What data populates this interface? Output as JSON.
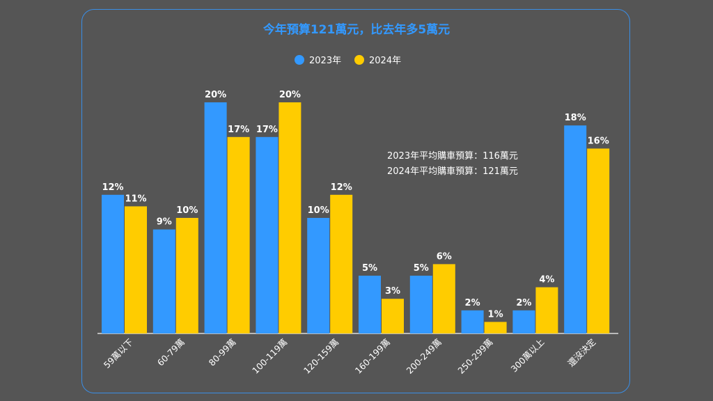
{
  "chart_data": {
    "type": "bar",
    "title": "今年預算121萬元，比去年多5萬元",
    "categories": [
      "59萬以下",
      "60-79萬",
      "80-99萬",
      "100-119萬",
      "120-159萬",
      "160-199萬",
      "200-249萬",
      "250-299萬",
      "300萬以上",
      "還沒決定"
    ],
    "series": [
      {
        "name": "2023年",
        "color": "#3399ff",
        "values": [
          12,
          9,
          20,
          17,
          10,
          5,
          5,
          2,
          2,
          18
        ]
      },
      {
        "name": "2024年",
        "color": "#ffcc00",
        "values": [
          11,
          10,
          17,
          20,
          12,
          3,
          6,
          1,
          4,
          16
        ]
      }
    ],
    "value_suffix": "%",
    "ylim": [
      0,
      20
    ],
    "grid": false,
    "legend_position": "top-center",
    "annotations": [
      "2023年平均購車預算：116萬元",
      "2024年平均購車預算：121萬元"
    ]
  },
  "colors": {
    "background": "#555555",
    "frame_border": "#3a8ee6",
    "title": "#3399ff",
    "text": "#ffffff",
    "axis": "#dddddd"
  }
}
